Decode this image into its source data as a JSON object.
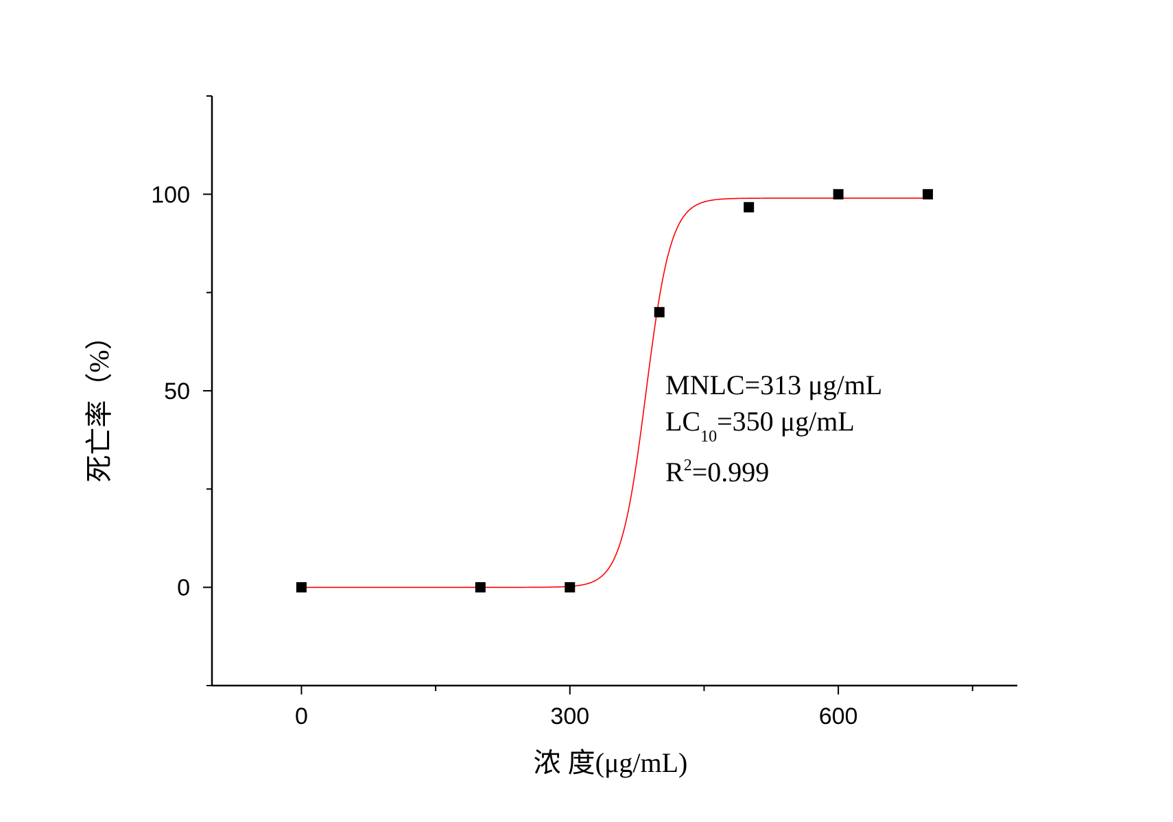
{
  "chart_data": {
    "type": "scatter",
    "title": "",
    "xlabel": "浓  度(μg/mL)",
    "ylabel": "死亡率（%）",
    "xlim": [
      -100,
      800
    ],
    "ylim": [
      -25,
      125
    ],
    "x_ticks": [
      0,
      300,
      600
    ],
    "x_tick_labels": [
      "0",
      "300",
      "600"
    ],
    "x_minor_ticks": [
      150,
      450,
      750
    ],
    "y_ticks": [
      0,
      50,
      100
    ],
    "y_tick_labels": [
      "0",
      "50",
      "100"
    ],
    "y_minor_ticks": [
      -25,
      25,
      75,
      125
    ],
    "grid": false,
    "series": [
      {
        "type": "scatter",
        "marker": "square",
        "color": "#000000",
        "x": [
          0,
          200,
          300,
          400,
          500,
          600,
          700
        ],
        "y": [
          0,
          0,
          0,
          70,
          96.7,
          100,
          100
        ]
      },
      {
        "type": "line",
        "color": "#ff0000",
        "fit": "logistic",
        "x_range": [
          0,
          700
        ],
        "params": {
          "A1": 0,
          "A2": 99,
          "x0": 385,
          "dx": 14
        }
      }
    ],
    "annotations": [
      {
        "main": "MNLC=313 μg/mL",
        "sub": "",
        "sup": "",
        "tail": ""
      },
      {
        "main": "LC",
        "sub": "10",
        "sup": "",
        "tail": "=350 μg/mL"
      },
      {
        "main": "R",
        "sub": "",
        "sup": "2",
        "tail": "=0.999"
      }
    ]
  }
}
